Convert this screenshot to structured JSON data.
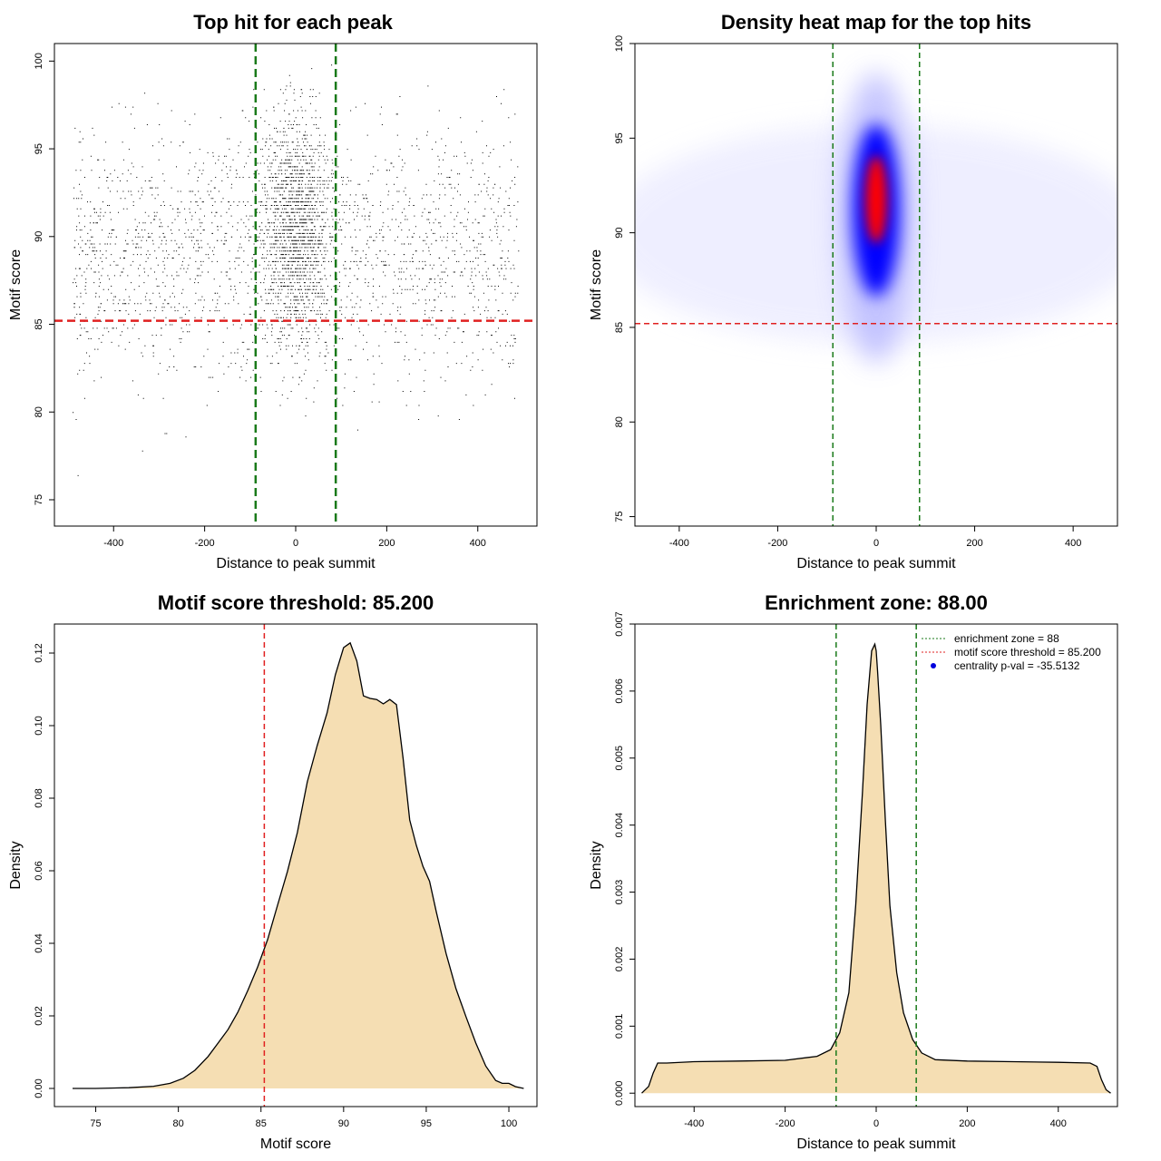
{
  "chart_data": [
    {
      "type": "scatter",
      "title": "Top hit for each peak",
      "xlabel": "Distance to peak summit",
      "ylabel": "Motif score",
      "xlim": [
        -530,
        530
      ],
      "ylim": [
        73.5,
        101
      ],
      "xticks": [
        -400,
        -200,
        0,
        200,
        400
      ],
      "yticks": [
        75,
        80,
        85,
        90,
        95,
        100
      ],
      "vlines": [
        -88,
        88
      ],
      "hline": 85.2,
      "colors": {
        "points": "#000000",
        "vlines": "#1a7a1a",
        "hline": "#e02020"
      }
    },
    {
      "type": "heatmap",
      "title": "Density heat map for the top hits",
      "xlabel": "Distance to peak summit",
      "ylabel": "Motif score",
      "xlim": [
        -490,
        490
      ],
      "ylim": [
        74.5,
        100
      ],
      "xticks": [
        -400,
        -200,
        0,
        200,
        400
      ],
      "yticks": [
        75,
        80,
        85,
        90,
        95,
        100
      ],
      "vlines": [
        -88,
        88
      ],
      "hline": 85.2,
      "colors": {
        "low": "#ffffff",
        "mid": "#0000ff",
        "high": "#ff0000",
        "vlines": "#1a7a1a",
        "hline": "#e02020"
      }
    },
    {
      "type": "area",
      "title": "Motif score threshold: 85.200",
      "xlabel": "Motif score",
      "ylabel": "Density",
      "xlim": [
        72.5,
        101.7
      ],
      "ylim": [
        -0.005,
        0.128
      ],
      "xticks": [
        75,
        80,
        85,
        90,
        95,
        100
      ],
      "yticks": [
        0.0,
        0.02,
        0.04,
        0.06,
        0.08,
        0.1,
        0.12
      ],
      "ytick_labels": [
        "0.00",
        "0.02",
        "0.04",
        "0.06",
        "0.08",
        "0.10",
        "0.12"
      ],
      "vline": 85.2,
      "x": [
        73.6,
        75,
        77,
        78.5,
        79.5,
        80.3,
        81,
        81.8,
        82.4,
        83,
        83.6,
        84.2,
        84.8,
        85.4,
        86,
        86.6,
        87.2,
        87.8,
        88.4,
        89,
        89.5,
        90,
        90.4,
        90.8,
        91.2,
        91.6,
        92,
        92.4,
        92.8,
        93.2,
        93.6,
        94,
        94.4,
        94.8,
        95.2,
        95.6,
        96.2,
        96.8,
        97.4,
        98,
        98.6,
        99.2,
        99.6,
        100,
        100.4,
        100.9
      ],
      "y": [
        0,
        0,
        0.0002,
        0.0006,
        0.0014,
        0.0028,
        0.005,
        0.0088,
        0.0125,
        0.0162,
        0.021,
        0.027,
        0.0335,
        0.041,
        0.0505,
        0.0598,
        0.0705,
        0.0845,
        0.0945,
        0.1035,
        0.114,
        0.1215,
        0.1228,
        0.1178,
        0.1082,
        0.1075,
        0.1072,
        0.106,
        0.1072,
        0.1058,
        0.091,
        0.074,
        0.067,
        0.0612,
        0.0571,
        0.0488,
        0.0372,
        0.0275,
        0.0198,
        0.0125,
        0.0062,
        0.0022,
        0.0014,
        0.0014,
        0.0005,
        0
      ],
      "colors": {
        "fill": "#f5deb3",
        "line": "#000000",
        "vline": "#e02020"
      }
    },
    {
      "type": "area",
      "title": "Enrichment zone: 88.00",
      "xlabel": "Distance to peak summit",
      "ylabel": "Density",
      "xlim": [
        -530,
        530
      ],
      "ylim": [
        -0.0002,
        0.007
      ],
      "xticks": [
        -400,
        -200,
        0,
        200,
        400
      ],
      "yticks": [
        0.0,
        0.001,
        0.002,
        0.003,
        0.004,
        0.005,
        0.006,
        0.007
      ],
      "ytick_labels": [
        "0.000",
        "0.001",
        "0.002",
        "0.003",
        "0.004",
        "0.005",
        "0.006",
        "0.007"
      ],
      "vlines": [
        -88,
        88
      ],
      "x": [
        -515,
        -500,
        -490,
        -480,
        -460,
        -400,
        -300,
        -200,
        -130,
        -100,
        -80,
        -60,
        -45,
        -30,
        -20,
        -10,
        -3,
        0,
        3,
        10,
        20,
        30,
        45,
        60,
        80,
        100,
        130,
        200,
        300,
        400,
        470,
        485,
        495,
        505,
        515
      ],
      "y": [
        0,
        0.0001,
        0.0003,
        0.00045,
        0.00045,
        0.00047,
        0.00048,
        0.00049,
        0.00055,
        0.00065,
        0.0009,
        0.0015,
        0.0028,
        0.0045,
        0.0058,
        0.0066,
        0.0067,
        0.0066,
        0.0063,
        0.0055,
        0.0041,
        0.0028,
        0.0018,
        0.0012,
        0.0008,
        0.0006,
        0.0005,
        0.00048,
        0.00047,
        0.00046,
        0.00045,
        0.0004,
        0.0002,
        5e-05,
        0
      ],
      "legend": {
        "placement": "top-right",
        "items": [
          {
            "label": "enrichment zone = 88",
            "color": "#1a7a1a",
            "style": "dotted"
          },
          {
            "label": "motif score threshold = 85.200",
            "color": "#e02020",
            "style": "dotted"
          },
          {
            "label": "centrality p-val = -35.5132",
            "color": "#0000dd",
            "style": "dot"
          }
        ]
      },
      "colors": {
        "fill": "#f5deb3",
        "line": "#000000",
        "vlines": "#1a7a1a"
      }
    }
  ]
}
